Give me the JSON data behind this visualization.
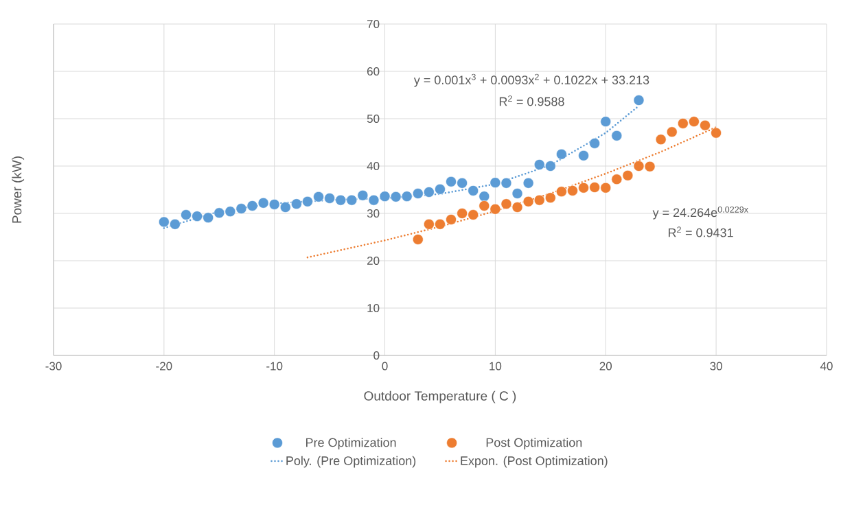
{
  "chart_data": {
    "type": "scatter",
    "xlabel": "Outdoor Temperature ( C )",
    "ylabel": "Power (kW)",
    "xlim": [
      -30,
      40
    ],
    "ylim": [
      0,
      70
    ],
    "xticks": [
      -30,
      -20,
      -10,
      0,
      10,
      20,
      30,
      40
    ],
    "yticks": [
      0,
      10,
      20,
      30,
      40,
      50,
      60,
      70
    ],
    "grid": true,
    "legend": "bottom",
    "series": [
      {
        "name": "Pre Optimization",
        "color": "#5b9bd5",
        "marker": "circle",
        "x": [
          -20,
          -19,
          -18,
          -17,
          -16,
          -15,
          -14,
          -13,
          -12,
          -11,
          -10,
          -9,
          -8,
          -7,
          -6,
          -5,
          -4,
          -3,
          -2,
          -1,
          0,
          1,
          2,
          3,
          4,
          5,
          6,
          7,
          8,
          9,
          10,
          11,
          12,
          13,
          14,
          15,
          16,
          18,
          19,
          20,
          21,
          23
        ],
        "values": [
          28.2,
          27.7,
          29.7,
          29.4,
          29.1,
          30.1,
          30.4,
          31.0,
          31.6,
          32.2,
          31.9,
          31.3,
          32.0,
          32.5,
          33.5,
          33.2,
          32.8,
          32.8,
          33.8,
          32.8,
          33.6,
          33.5,
          33.6,
          34.2,
          34.5,
          35.1,
          36.7,
          36.4,
          34.8,
          33.6,
          36.5,
          36.4,
          34.2,
          36.4,
          40.3,
          40.0,
          42.5,
          42.2,
          44.8,
          49.4,
          46.4,
          53.9
        ]
      },
      {
        "name": "Post Optimization",
        "color": "#ed7d31",
        "marker": "circle",
        "x": [
          3,
          4,
          5,
          6,
          7,
          8,
          9,
          10,
          11,
          12,
          13,
          14,
          15,
          16,
          17,
          18,
          19,
          20,
          21,
          22,
          23,
          24,
          25,
          26,
          27,
          28,
          29,
          30
        ],
        "values": [
          24.5,
          27.7,
          27.7,
          28.7,
          30.0,
          29.7,
          31.6,
          30.9,
          32.0,
          31.3,
          32.5,
          32.8,
          33.3,
          34.6,
          34.8,
          35.4,
          35.5,
          35.4,
          37.2,
          38.0,
          40.0,
          39.9,
          45.6,
          47.2,
          49.0,
          49.4,
          48.6,
          47.0
        ]
      },
      {
        "name": "Poly. (Pre Optimization)",
        "color": "#5b9bd5",
        "type": "line",
        "marker": "none",
        "line_style": "dotted",
        "x": [
          -20,
          -15,
          -10,
          -5,
          0,
          5,
          10,
          15,
          20,
          23
        ],
        "values": [
          26.9,
          30.4,
          32.1,
          32.8,
          33.2,
          34.1,
          36.2,
          40.2,
          47.0,
          52.7
        ]
      },
      {
        "name": "Expon. (Post Optimization)",
        "color": "#ed7d31",
        "type": "line",
        "marker": "none",
        "line_style": "dotted",
        "x": [
          -7,
          0,
          5,
          10,
          15,
          20,
          25,
          30
        ],
        "values": [
          20.7,
          24.3,
          27.2,
          30.5,
          34.2,
          38.4,
          43.0,
          48.2
        ]
      }
    ],
    "annotations": [
      "y = 0.001x$^{3}$ + 0.0093x$^{2}$ + 0.1022x + 33.213",
      "R$^{2}$ = 0.9588",
      "y = 24.264e$^{0.0229x}$",
      "R$^{2}$ = 0.9431"
    ]
  }
}
